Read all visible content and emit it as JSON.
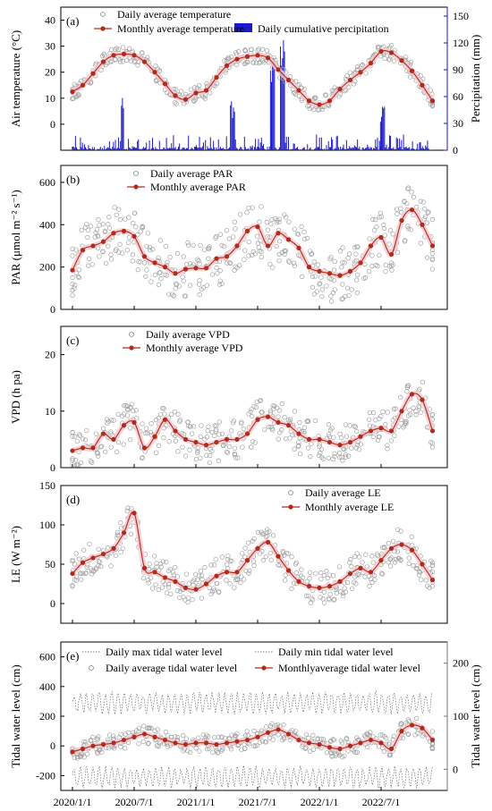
{
  "x_axis": {
    "tick_labels": [
      "2020/1/1",
      "2020/7/1",
      "2021/1/1",
      "2021/7/1",
      "2022/1/1",
      "2022/7/1"
    ]
  },
  "chart_data": [
    {
      "panel_label": "(a)",
      "type": "line",
      "ylabel": "Air temperature (°C)",
      "y2label": "Percipitation (mm)",
      "ylim": [
        -10,
        45
      ],
      "y_ticks": [
        0,
        10,
        20,
        30,
        40
      ],
      "y2lim": [
        0,
        160
      ],
      "y2_ticks": [
        0,
        30,
        60,
        90,
        120,
        150
      ],
      "y2_color": "#1a1acc",
      "legend": [
        {
          "label": "Daily average temperature",
          "marker": "open-circle"
        },
        {
          "label": "Monthly average temperature",
          "marker": "line-dot"
        },
        {
          "label": "Daily cumulative percipitation",
          "marker": "bar"
        }
      ],
      "series": [
        {
          "name": "Monthly average temperature",
          "color": "#b22a1a",
          "values": [
            12.5,
            15,
            19.5,
            24,
            26.5,
            27,
            26.5,
            24,
            20,
            15.5,
            11,
            9.5,
            12,
            13,
            18,
            22.5,
            25,
            26,
            26.5,
            25.5,
            21,
            17,
            13,
            9,
            7.5,
            9,
            13.5,
            17,
            20,
            23.5,
            28,
            27.5,
            24.5,
            20.5,
            15,
            9
          ]
        },
        {
          "name": "Daily average temperature",
          "color": "#a0a0a0",
          "kind": "scatter-noise",
          "base": "Monthly average temperature",
          "spread": 3
        }
      ],
      "precip_peaks_mm": [
        {
          "month": 5,
          "value": 60
        },
        {
          "month": 16,
          "value": 55
        },
        {
          "month": 20,
          "value": 120
        },
        {
          "month": 21,
          "value": 125
        },
        {
          "month": 31,
          "value": 50
        }
      ]
    },
    {
      "panel_label": "(b)",
      "type": "line",
      "ylabel": "PAR (μmol m⁻² s⁻¹)",
      "ylim": [
        0,
        680
      ],
      "y_ticks": [
        0,
        200,
        400,
        600
      ],
      "legend": [
        {
          "label": "Daily average PAR",
          "marker": "open-circle"
        },
        {
          "label": "Monthly average PAR",
          "marker": "line-dot"
        }
      ],
      "series": [
        {
          "name": "Monthly average PAR",
          "color": "#b22a1a",
          "values": [
            185,
            280,
            300,
            320,
            360,
            370,
            345,
            250,
            220,
            200,
            170,
            190,
            195,
            195,
            240,
            250,
            300,
            370,
            390,
            300,
            360,
            330,
            290,
            200,
            180,
            170,
            160,
            180,
            220,
            300,
            340,
            260,
            420,
            470,
            400,
            300
          ]
        },
        {
          "name": "Daily average PAR",
          "color": "#a0a0a0",
          "kind": "scatter-noise",
          "base": "Monthly average PAR",
          "spread": 130
        }
      ]
    },
    {
      "panel_label": "(c)",
      "type": "line",
      "ylabel": "VPD (h pa)",
      "ylim": [
        0,
        25
      ],
      "y_ticks": [
        0,
        10,
        20
      ],
      "legend": [
        {
          "label": "Daily average VPD",
          "marker": "open-circle"
        },
        {
          "label": "Monthly average  VPD",
          "marker": "line-dot"
        }
      ],
      "series": [
        {
          "name": "Monthly average VPD",
          "color": "#b22a1a",
          "values": [
            3,
            3.5,
            3.5,
            6,
            5,
            7.5,
            8,
            3.5,
            5.5,
            8.5,
            6.5,
            5,
            4.5,
            4,
            4.5,
            5,
            5,
            6,
            8.5,
            9,
            8,
            7.5,
            6,
            5,
            5,
            4.5,
            4,
            4.5,
            5.5,
            6.5,
            7,
            6.5,
            10,
            13,
            12,
            6.5
          ]
        },
        {
          "name": "Daily average VPD",
          "color": "#a0a0a0",
          "kind": "scatter-noise",
          "base": "Monthly average VPD",
          "spread": 3.5
        }
      ]
    },
    {
      "panel_label": "(d)",
      "type": "line",
      "ylabel": "LE (W m⁻²)",
      "ylim": [
        -25,
        150
      ],
      "y_ticks": [
        0,
        50,
        100,
        150
      ],
      "legend": [
        {
          "label": "Daily average LE",
          "marker": "open-circle"
        },
        {
          "label": "Monthly average LE",
          "marker": "line-dot"
        }
      ],
      "series": [
        {
          "name": "Monthly average LE",
          "color": "#b22a1a",
          "values": [
            38,
            52,
            58,
            63,
            70,
            90,
            115,
            45,
            40,
            33,
            28,
            20,
            18,
            25,
            35,
            40,
            40,
            55,
            70,
            78,
            60,
            42,
            28,
            22,
            20,
            22,
            28,
            38,
            45,
            40,
            55,
            70,
            75,
            68,
            50,
            30
          ]
        },
        {
          "name": "Daily average LE",
          "color": "#a0a0a0",
          "kind": "scatter-noise",
          "base": "Monthly average LE",
          "spread": 22
        }
      ]
    },
    {
      "panel_label": "(e)",
      "type": "line",
      "ylabel": "Tidal water level (cm)",
      "y2label": "Tidal water level (cm)",
      "ylim": [
        -300,
        700
      ],
      "y_ticks": [
        -200,
        0,
        200,
        400,
        600
      ],
      "y2lim": [
        -40,
        240
      ],
      "y2_ticks": [
        0,
        100,
        200
      ],
      "y2_color": "#777777",
      "legend": [
        {
          "label": "Daily max tidal water level",
          "marker": "dotted"
        },
        {
          "label": "Daily min tidal water level",
          "marker": "dotted"
        },
        {
          "label": "Daily average tidal water level",
          "marker": "open-circle"
        },
        {
          "label": "Monthlyaverage tidal water level",
          "marker": "line-dot"
        }
      ],
      "series": [
        {
          "name": "Monthlyaverage tidal water level",
          "color": "#b22a1a",
          "values": [
            -40,
            -20,
            0,
            10,
            20,
            40,
            60,
            80,
            60,
            40,
            20,
            10,
            20,
            20,
            10,
            20,
            30,
            40,
            60,
            90,
            110,
            80,
            40,
            20,
            10,
            -10,
            -20,
            0,
            20,
            40,
            20,
            -20,
            100,
            140,
            120,
            40
          ]
        },
        {
          "name": "Daily max tidal water level",
          "color": "#555555",
          "kind": "band",
          "level": 290
        },
        {
          "name": "Daily min tidal water level",
          "color": "#555555",
          "kind": "band",
          "level": -210
        },
        {
          "name": "Daily average tidal water level",
          "color": "#a0a0a0",
          "kind": "scatter-noise",
          "base": "Monthlyaverage tidal water level",
          "spread": 60
        }
      ]
    }
  ]
}
